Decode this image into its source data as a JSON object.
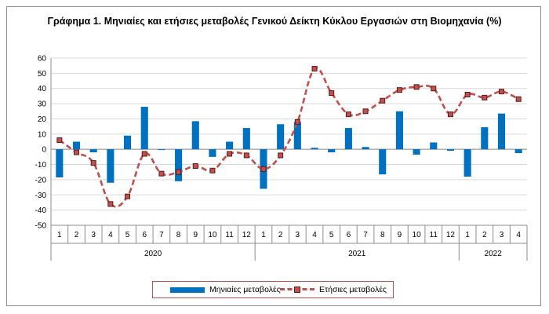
{
  "chart_data": {
    "type": "bar+line",
    "title": "Γράφημα 1. Μηνιαίες και ετήσιες μεταβολές  Γενικού Δείκτη Κύκλου Εργασιών στη Βιομηχανία (%)",
    "categories": [
      "1",
      "2",
      "3",
      "4",
      "5",
      "6",
      "7",
      "8",
      "9",
      "10",
      "11",
      "12",
      "1",
      "2",
      "3",
      "4",
      "5",
      "6",
      "7",
      "8",
      "9",
      "10",
      "11",
      "12",
      "1",
      "2",
      "3",
      "4"
    ],
    "year_groups": [
      {
        "label": "2020",
        "count": 12
      },
      {
        "label": "2021",
        "count": 12
      },
      {
        "label": "2022",
        "count": 4
      }
    ],
    "ylim": [
      -50,
      60
    ],
    "yticks": [
      -50,
      -40,
      -30,
      -20,
      -10,
      0,
      10,
      20,
      30,
      40,
      50,
      60
    ],
    "grid": true,
    "legend_position": "bottom",
    "series": [
      {
        "name": "Μηνιαίες μεταβολές",
        "kind": "bar",
        "color": "#0070c0",
        "values": [
          -18.5,
          5,
          -2,
          -22,
          9,
          28,
          -0.5,
          -21,
          18.5,
          -5,
          5,
          14,
          -26,
          16.5,
          18,
          1,
          -2,
          14,
          1.5,
          -16.5,
          25,
          -3.5,
          4.5,
          -1,
          -18,
          14.5,
          23.5,
          -2.5
        ]
      },
      {
        "name": "Ετήσιες μεταβολές",
        "kind": "line",
        "color": "#c0504d",
        "values": [
          6,
          -2,
          -9,
          -36,
          -31,
          -3,
          -16,
          -15,
          -11,
          -14,
          -3,
          -4,
          -13,
          -4,
          18,
          53,
          37,
          23,
          25,
          32,
          39,
          41,
          40,
          23,
          36,
          34,
          38,
          33
        ]
      }
    ]
  }
}
